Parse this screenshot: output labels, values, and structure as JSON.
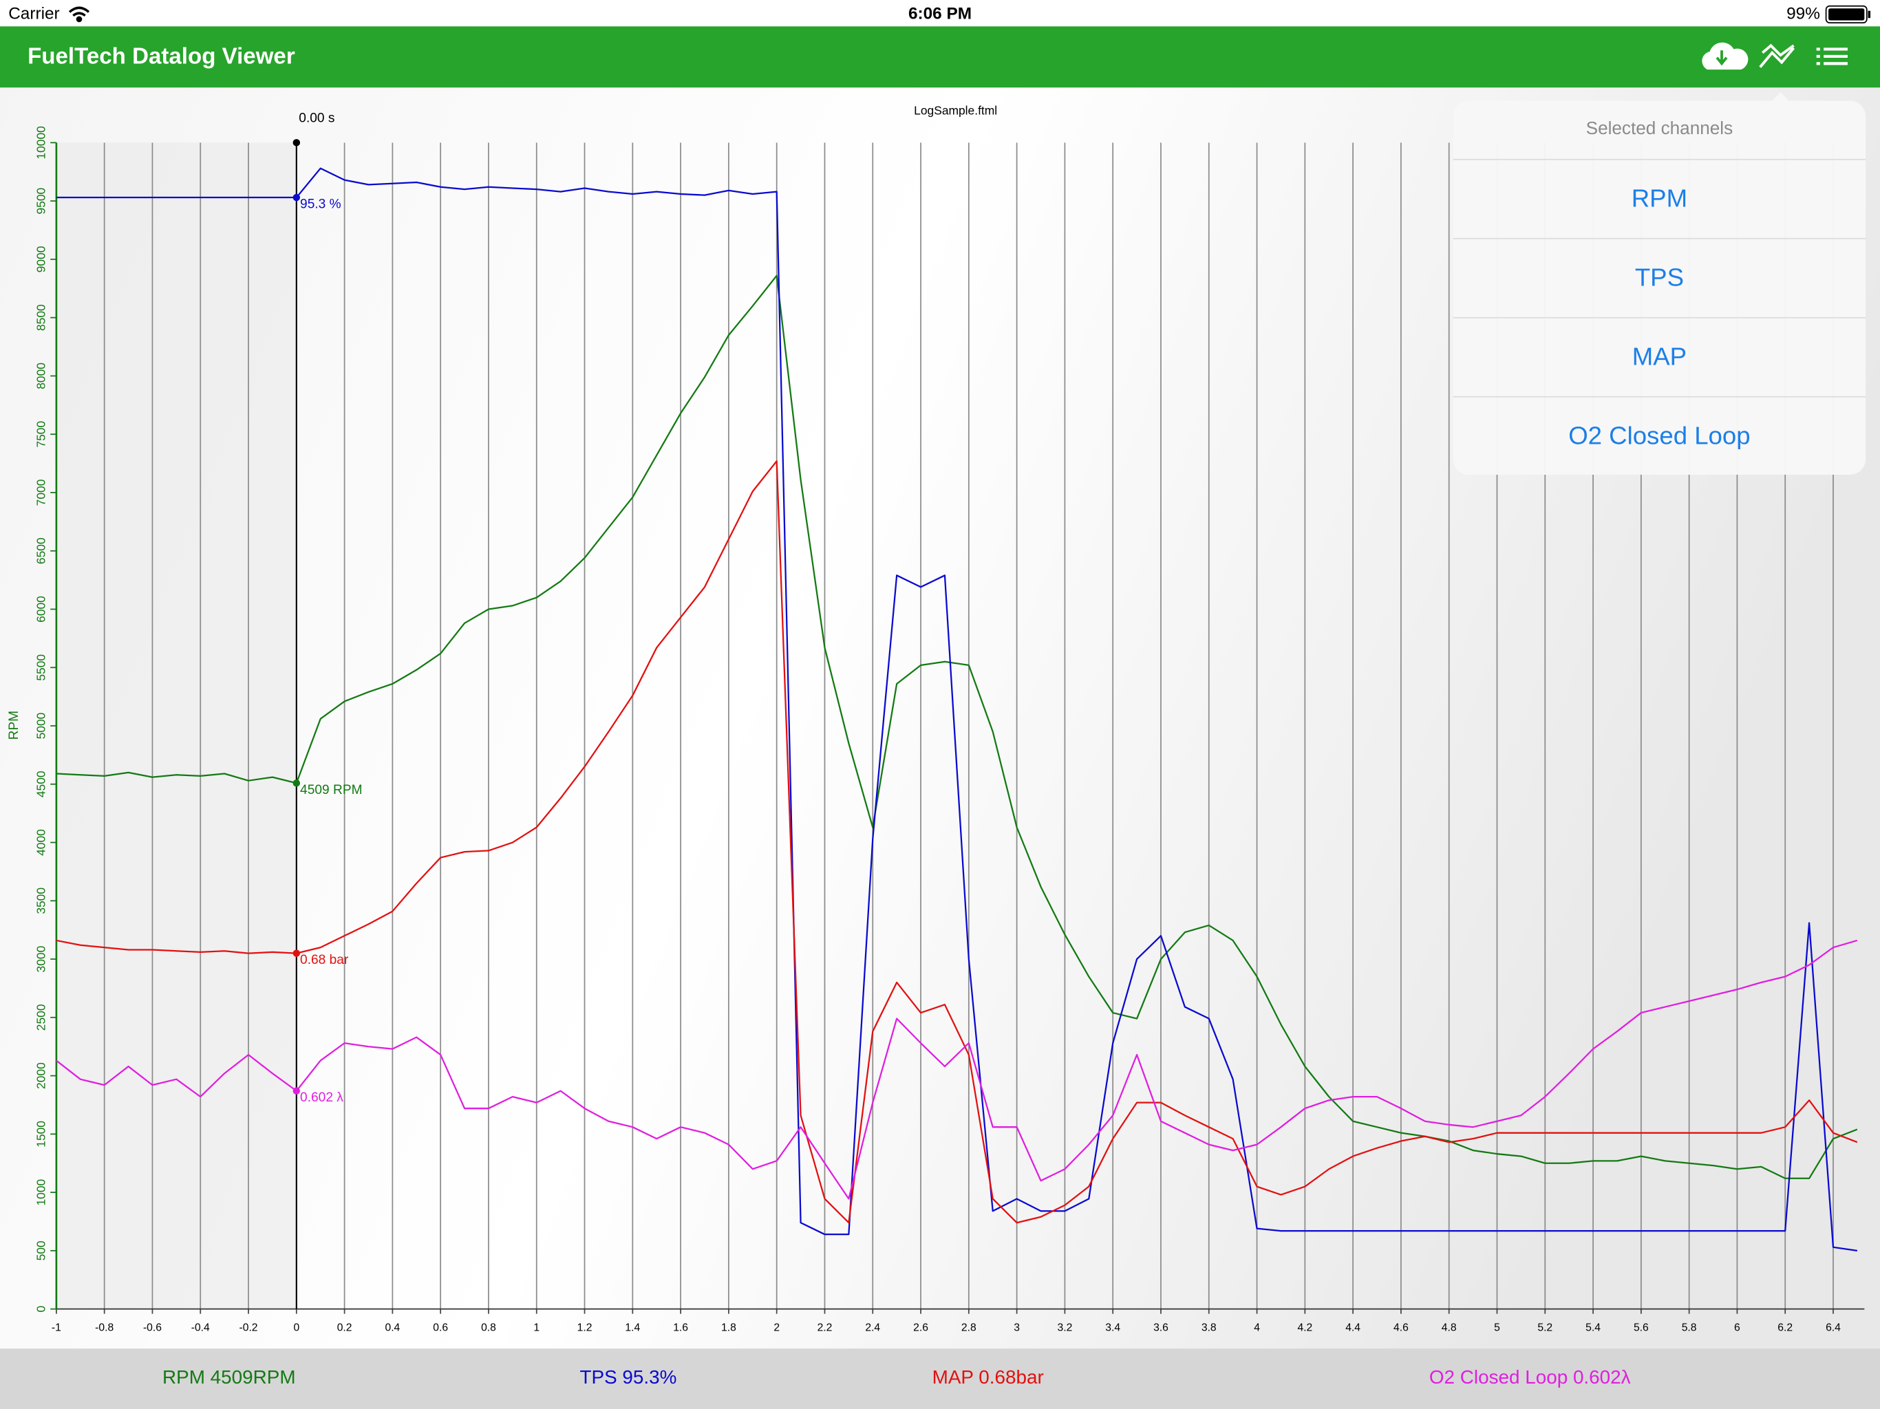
{
  "status_bar": {
    "carrier": "Carrier",
    "time": "6:06 PM",
    "battery": "99%"
  },
  "nav": {
    "title": "FuelTech Datalog Viewer"
  },
  "popover": {
    "header": "Selected channels",
    "items": [
      "RPM",
      "TPS",
      "MAP",
      "O2 Closed Loop"
    ]
  },
  "chart_data": {
    "type": "line",
    "title": "LogSample.ftml",
    "y_label": "RPM",
    "cursor_x": 0,
    "cursor_time_label": "0.00 s",
    "cursor_labels": [
      "4509 RPM",
      "95.3 %",
      "0.68 bar",
      "0.602 λ"
    ],
    "xlim": [
      -1,
      6.53
    ],
    "xticks": [
      -1,
      -0.8,
      -0.6,
      -0.4,
      -0.2,
      0,
      0.2,
      0.4,
      0.6,
      0.8,
      1,
      1.2,
      1.4,
      1.6,
      1.8,
      2,
      2.2,
      2.4,
      2.6,
      2.8,
      3,
      3.2,
      3.4,
      3.6,
      3.8,
      4,
      4.2,
      4.4,
      4.6,
      4.8,
      5,
      5.2,
      5.4,
      5.6,
      5.8,
      6,
      6.2,
      6.4
    ],
    "ylim": [
      0,
      10000
    ],
    "yticks": [
      0,
      500,
      1000,
      1500,
      2000,
      2500,
      3000,
      3500,
      4000,
      4500,
      5000,
      5500,
      6000,
      6500,
      7000,
      7500,
      8000,
      8500,
      9000,
      9500,
      10000
    ],
    "grid": true,
    "x": [
      -1,
      -0.9,
      -0.8,
      -0.7,
      -0.6,
      -0.5,
      -0.4,
      -0.3,
      -0.2,
      -0.1,
      0,
      0.1,
      0.2,
      0.3,
      0.4,
      0.5,
      0.6,
      0.7,
      0.8,
      0.9,
      1,
      1.1,
      1.2,
      1.3,
      1.4,
      1.5,
      1.6,
      1.7,
      1.8,
      1.9,
      2,
      2.1,
      2.2,
      2.3,
      2.4,
      2.5,
      2.6,
      2.7,
      2.8,
      2.9,
      3,
      3.1,
      3.2,
      3.3,
      3.4,
      3.5,
      3.6,
      3.7,
      3.8,
      3.9,
      4,
      4.1,
      4.2,
      4.3,
      4.4,
      4.5,
      4.6,
      4.7,
      4.8,
      4.9,
      5,
      5.1,
      5.2,
      5.3,
      5.4,
      5.5,
      5.6,
      5.7,
      5.8,
      5.9,
      6,
      6.1,
      6.2,
      6.3,
      6.4,
      6.5
    ],
    "series": [
      {
        "name": "RPM",
        "color": "#137a13",
        "values": [
          4590,
          4580,
          4570,
          4600,
          4560,
          4580,
          4570,
          4590,
          4530,
          4560,
          4509,
          5060,
          5210,
          5290,
          5360,
          5480,
          5620,
          5880,
          6000,
          6030,
          6100,
          6240,
          6440,
          6700,
          6960,
          7320,
          7680,
          7990,
          8350,
          8600,
          8860,
          7110,
          5670,
          4850,
          4130,
          5360,
          5520,
          5550,
          5520,
          4950,
          4130,
          3620,
          3210,
          2850,
          2540,
          2490,
          3000,
          3230,
          3290,
          3160,
          2850,
          2440,
          2080,
          1820,
          1610,
          1560,
          1510,
          1480,
          1440,
          1360,
          1330,
          1310,
          1250,
          1250,
          1270,
          1270,
          1310,
          1270,
          1250,
          1230,
          1200,
          1220,
          1120,
          1120,
          1460,
          1540
        ]
      },
      {
        "name": "TPS",
        "color": "#0a0ad0",
        "values": [
          9530,
          9530,
          9530,
          9530,
          9530,
          9530,
          9530,
          9530,
          9530,
          9530,
          9530,
          9780,
          9680,
          9640,
          9650,
          9660,
          9620,
          9600,
          9620,
          9610,
          9600,
          9580,
          9610,
          9580,
          9560,
          9580,
          9560,
          9550,
          9590,
          9560,
          9580,
          740,
          640,
          640,
          4030,
          6290,
          6190,
          6290,
          3000,
          840,
          945,
          840,
          840,
          945,
          2280,
          3000,
          3200,
          2590,
          2490,
          1970,
          690,
          670,
          670,
          670,
          670,
          670,
          670,
          670,
          670,
          670,
          670,
          670,
          670,
          670,
          670,
          670,
          670,
          670,
          670,
          670,
          670,
          670,
          670,
          3310,
          530,
          500
        ]
      },
      {
        "name": "MAP",
        "color": "#e31010",
        "values": [
          3160,
          3120,
          3100,
          3080,
          3080,
          3070,
          3060,
          3070,
          3050,
          3060,
          3050,
          3100,
          3200,
          3300,
          3410,
          3650,
          3870,
          3920,
          3930,
          4000,
          4130,
          4380,
          4650,
          4950,
          5260,
          5670,
          5930,
          6190,
          6600,
          7010,
          7270,
          1660,
          945,
          740,
          2380,
          2800,
          2540,
          2610,
          2180,
          945,
          740,
          790,
          890,
          1050,
          1460,
          1770,
          1770,
          1660,
          1560,
          1460,
          1050,
          980,
          1050,
          1200,
          1310,
          1380,
          1440,
          1480,
          1430,
          1460,
          1510,
          1510,
          1510,
          1510,
          1510,
          1510,
          1510,
          1510,
          1510,
          1510,
          1510,
          1510,
          1560,
          1790,
          1510,
          1430
        ]
      },
      {
        "name": "O2 Closed Loop",
        "color": "#e01ee0",
        "values": [
          2130,
          1970,
          1920,
          2080,
          1920,
          1970,
          1820,
          2020,
          2180,
          2020,
          1870,
          2130,
          2280,
          2250,
          2230,
          2330,
          2180,
          1720,
          1720,
          1820,
          1770,
          1870,
          1720,
          1610,
          1560,
          1460,
          1560,
          1510,
          1410,
          1200,
          1270,
          1560,
          1250,
          945,
          1770,
          2490,
          2280,
          2080,
          2280,
          1560,
          1560,
          1100,
          1200,
          1410,
          1660,
          2180,
          1610,
          1510,
          1410,
          1360,
          1410,
          1560,
          1720,
          1790,
          1820,
          1820,
          1720,
          1610,
          1580,
          1560,
          1610,
          1660,
          1820,
          2020,
          2230,
          2380,
          2540,
          2590,
          2640,
          2690,
          2740,
          2800,
          2850,
          2950,
          3100,
          3160
        ]
      }
    ]
  },
  "footer": [
    "RPM 4509RPM",
    "TPS 95.3%",
    "MAP 0.68bar",
    "O2 Closed Loop 0.602λ"
  ]
}
